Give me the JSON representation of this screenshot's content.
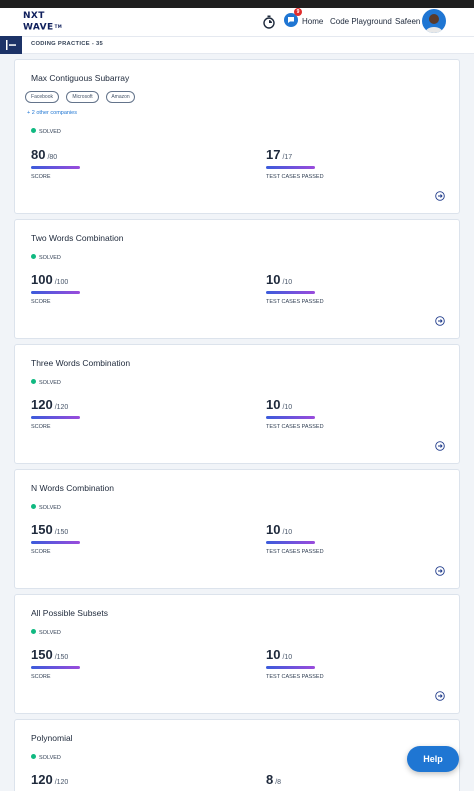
{
  "header": {
    "logo_line1": "NXT",
    "logo_line2": "WAVE",
    "logo_tm": "TM",
    "notification_count": "9",
    "nav": [
      "Home",
      "Code Playground",
      "Safeen"
    ]
  },
  "subheader": {
    "title": "CODING PRACTICE - 35"
  },
  "problems": [
    {
      "title": "Max Contiguous Subarray",
      "tags": [
        "Facebook",
        "Microsoft",
        "Amazon"
      ],
      "other_companies": "+ 2 other companies",
      "status": "SOLVED",
      "score": "80",
      "score_total": "/80",
      "score_label": "SCORE",
      "tests": "17",
      "tests_total": "/17",
      "tests_label": "TEST CASES PASSED",
      "score_progress": 1.0,
      "tests_progress": 1.0
    },
    {
      "title": "Two Words Combination",
      "status": "SOLVED",
      "score": "100",
      "score_total": "/100",
      "score_label": "SCORE",
      "tests": "10",
      "tests_total": "/10",
      "tests_label": "TEST CASES PASSED",
      "score_progress": 1.0,
      "tests_progress": 1.0
    },
    {
      "title": "Three Words Combination",
      "status": "SOLVED",
      "score": "120",
      "score_total": "/120",
      "score_label": "SCORE",
      "tests": "10",
      "tests_total": "/10",
      "tests_label": "TEST CASES PASSED",
      "score_progress": 1.0,
      "tests_progress": 1.0
    },
    {
      "title": "N Words Combination",
      "status": "SOLVED",
      "score": "150",
      "score_total": "/150",
      "score_label": "SCORE",
      "tests": "10",
      "tests_total": "/10",
      "tests_label": "TEST CASES PASSED",
      "score_progress": 1.0,
      "tests_progress": 1.0
    },
    {
      "title": "All Possible Subsets",
      "status": "SOLVED",
      "score": "150",
      "score_total": "/150",
      "score_label": "SCORE",
      "tests": "10",
      "tests_total": "/10",
      "tests_label": "TEST CASES PASSED",
      "score_progress": 1.0,
      "tests_progress": 1.0
    },
    {
      "title": "Polynomial",
      "status": "SOLVED",
      "score": "120",
      "score_total": "/120",
      "tests": "8",
      "tests_total": "/8"
    }
  ],
  "help_button": "Help",
  "colors": {
    "brand": "#1f76d3",
    "solved": "#10b981",
    "progress_start": "#3b5bdb",
    "progress_end": "#9a4bdc",
    "nav_dark": "#1c3267"
  },
  "icons": [
    "timer-icon",
    "chat-icon",
    "avatar",
    "sidebar-toggle-icon",
    "arrow-right-circle-icon"
  ]
}
